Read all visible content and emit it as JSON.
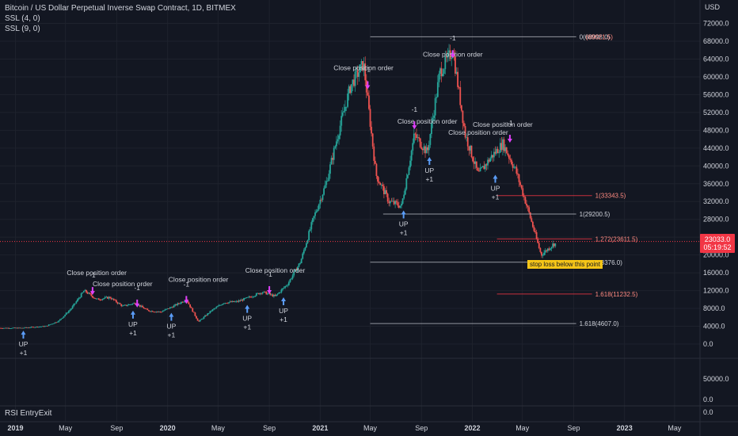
{
  "header": {
    "title": "Bitcoin / US Dollar Perpetual Inverse Swap Contract, 1D, BITMEX",
    "indicator1": "SSL (4, 0)",
    "indicator2": "SSL (9, 0)"
  },
  "rsi_label": "RSI EntryExit",
  "price_tag": {
    "price": "23033.0",
    "countdown": "05:19:52"
  },
  "stop_label": "stop loss below this point",
  "chart_data": {
    "type": "candlestick",
    "title": "Bitcoin / US Dollar Perpetual Inverse Swap Contract, 1D, BITMEX",
    "y_unit": "USD",
    "ylim": [
      -2000,
      72000
    ],
    "y_ticks": [
      "72000.0",
      "68000.0",
      "64000.0",
      "60000.0",
      "56000.0",
      "52000.0",
      "48000.0",
      "44000.0",
      "40000.0",
      "36000.0",
      "32000.0",
      "28000.0",
      "24000.0",
      "20000.0",
      "16000.0",
      "12000.0",
      "8000.0",
      "4000.0",
      "0.0"
    ],
    "x_ticks": [
      "2019",
      "May",
      "Sep",
      "2020",
      "May",
      "Sep",
      "2021",
      "May",
      "Sep",
      "2022",
      "May",
      "Sep",
      "2023",
      "May"
    ],
    "price_path": [
      [
        "2019-01",
        3600
      ],
      [
        "2019-03",
        4000
      ],
      [
        "2019-04",
        5200
      ],
      [
        "2019-05",
        8000
      ],
      [
        "2019-06",
        12000
      ],
      [
        "2019-07",
        10000
      ],
      [
        "2019-08",
        10500
      ],
      [
        "2019-09",
        8500
      ],
      [
        "2019-10",
        9200
      ],
      [
        "2019-11",
        7500
      ],
      [
        "2019-12",
        7200
      ],
      [
        "2020-01",
        8500
      ],
      [
        "2020-02",
        10000
      ],
      [
        "2020-03",
        5000
      ],
      [
        "2020-04",
        7500
      ],
      [
        "2020-05",
        9300
      ],
      [
        "2020-06",
        9500
      ],
      [
        "2020-07",
        10500
      ],
      [
        "2020-08",
        11700
      ],
      [
        "2020-09",
        10700
      ],
      [
        "2020-10",
        13500
      ],
      [
        "2020-11",
        18500
      ],
      [
        "2020-12",
        28000
      ],
      [
        "2021-01",
        36000
      ],
      [
        "2021-02",
        48000
      ],
      [
        "2021-03",
        58000
      ],
      [
        "2021-04",
        63000
      ],
      [
        "2021-05",
        38000
      ],
      [
        "2021-06",
        32000
      ],
      [
        "2021-07",
        31000
      ],
      [
        "2021-08",
        47000
      ],
      [
        "2021-09",
        43000
      ],
      [
        "2021-10",
        61000
      ],
      [
        "2021-11",
        66000
      ],
      [
        "2021-12",
        47000
      ],
      [
        "2022-01",
        38000
      ],
      [
        "2022-02",
        42000
      ],
      [
        "2022-03",
        45000
      ],
      [
        "2022-04",
        39000
      ],
      [
        "2022-05",
        30000
      ],
      [
        "2022-06",
        20000
      ],
      [
        "2022-07",
        22500
      ]
    ],
    "fib_lines": [
      {
        "label": "0(68996.0)",
        "value": 68996,
        "color": "#b2b5be"
      },
      {
        "label": "1(33343.5)",
        "value": 33343.5,
        "color": "#f23645"
      },
      {
        "label": "1(29200.5)",
        "value": 29200.5,
        "color": "#b2b5be"
      },
      {
        "label": "1.272(23611.5)",
        "value": 23611.5,
        "color": "#f23645"
      },
      {
        "label": "1.272(18376.0)",
        "value": 18376,
        "color": "#b2b5be"
      },
      {
        "label": "1.618(11232.5)",
        "value": 11232.5,
        "color": "#f23645"
      },
      {
        "label": "1.618(4607.0)",
        "value": 4607,
        "color": "#b2b5be"
      }
    ],
    "fib_overlap_label": "(69021.5)",
    "annotations": [
      {
        "text": "Close position order",
        "x": "2019-07",
        "y": 15500
      },
      {
        "text": "Close position order",
        "x": "2019-09",
        "y": 13000
      },
      {
        "text": "Close position order",
        "x": "2020-03",
        "y": 14000
      },
      {
        "text": "Close position order",
        "x": "2020-09",
        "y": 16000
      },
      {
        "text": "Close position order",
        "x": "2021-04",
        "y": 61500
      },
      {
        "text": "Close position order",
        "x": "2021-11",
        "y": 64500
      },
      {
        "text": "Close position order",
        "x": "2021-09",
        "y": 49500
      },
      {
        "text": "Close position order",
        "x": "2022-01",
        "y": 47000
      },
      {
        "text": "Close position order",
        "x": "2022-03",
        "y": 48800
      }
    ],
    "signals": [
      {
        "type": "UP",
        "label": "+1",
        "x": "2019-01-20",
        "y": 3000
      },
      {
        "type": "UP",
        "label": "+1",
        "x": "2019-10-10",
        "y": 7500
      },
      {
        "type": "UP",
        "label": "+1",
        "x": "2020-01-10",
        "y": 7000
      },
      {
        "type": "UP",
        "label": "+1",
        "x": "2020-07-10",
        "y": 8800
      },
      {
        "type": "UP",
        "label": "+1",
        "x": "2020-10-05",
        "y": 10500
      },
      {
        "type": "UP",
        "label": "+1",
        "x": "2021-07-20",
        "y": 30000
      },
      {
        "type": "UP",
        "label": "+1",
        "x": "2021-09-20",
        "y": 42000
      },
      {
        "type": "UP",
        "label": "+1",
        "x": "2022-02-25",
        "y": 38000
      },
      {
        "type": "DN",
        "label": "-1",
        "x": "2019-07-05",
        "y": 12800
      },
      {
        "type": "DN",
        "label": "-1",
        "x": "2019-10-20",
        "y": 10000
      },
      {
        "type": "DN",
        "label": "-1",
        "x": "2020-02-15",
        "y": 10800
      },
      {
        "type": "DN",
        "label": "-1",
        "x": "2020-09-01",
        "y": 13000
      },
      {
        "type": "DN",
        "label": "-1",
        "x": "2021-04-25",
        "y": 59000
      },
      {
        "type": "DN",
        "label": "-1",
        "x": "2021-08-15",
        "y": 50000
      },
      {
        "type": "DN",
        "label": "-1",
        "x": "2021-11-15",
        "y": 66000
      },
      {
        "type": "DN",
        "label": "-1",
        "x": "2022-04-01",
        "y": 47000
      }
    ],
    "current_price": 23033.0,
    "rsi_pane": {
      "y_ticks": [
        "50000.0",
        "0.0"
      ],
      "label": "RSI EntryExit"
    },
    "bottom_pane": {
      "y_ticks": [
        "0.0"
      ]
    }
  },
  "colors": {
    "background": "#131722",
    "grid": "#1e222d",
    "up": "#26a69a",
    "down": "#ef5350",
    "text": "#d1d4dc",
    "signal_up": "#5b9cf6",
    "signal_down": "#e040fb",
    "price_tag": "#f23645"
  }
}
